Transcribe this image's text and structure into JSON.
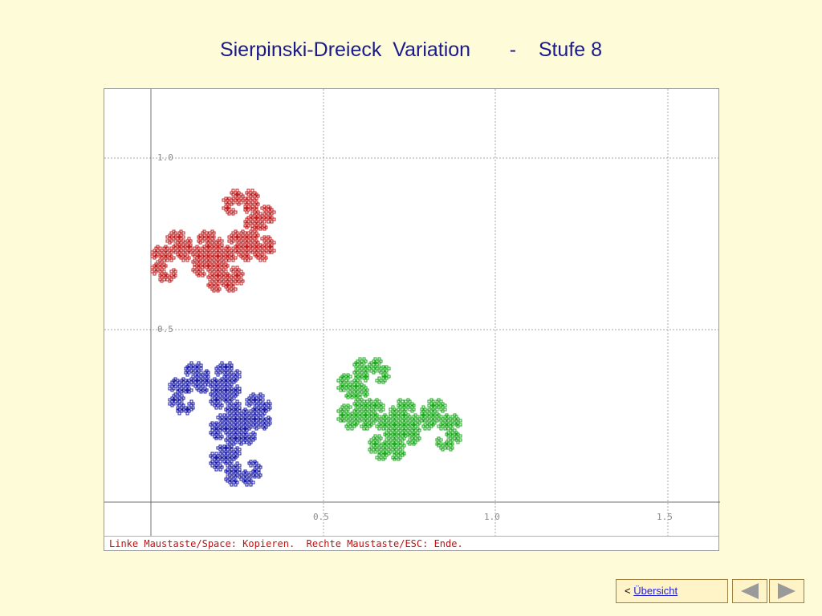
{
  "title": "Sierpinski-Dreieck  Variation       -    Stufe 8",
  "plot": {
    "tick_labels": {
      "y_top": "1.0",
      "y_mid": "0.5",
      "x_05": "0.5",
      "x_10": "1.0",
      "x_15": "1.5"
    },
    "status": "Linke Maustaste/Space: Kopieren.  Rechte Maustaste/ESC: Ende.",
    "colors": {
      "red": "#c02020",
      "blue": "#1c1ca8",
      "green": "#1ea81e",
      "grid": "#a8a8a8",
      "axis": "#707070"
    }
  },
  "nav": {
    "back_prefix": "<",
    "overview_link": "Übersicht",
    "prev_icon": "triangle-left-icon",
    "next_icon": "triangle-right-icon"
  }
}
